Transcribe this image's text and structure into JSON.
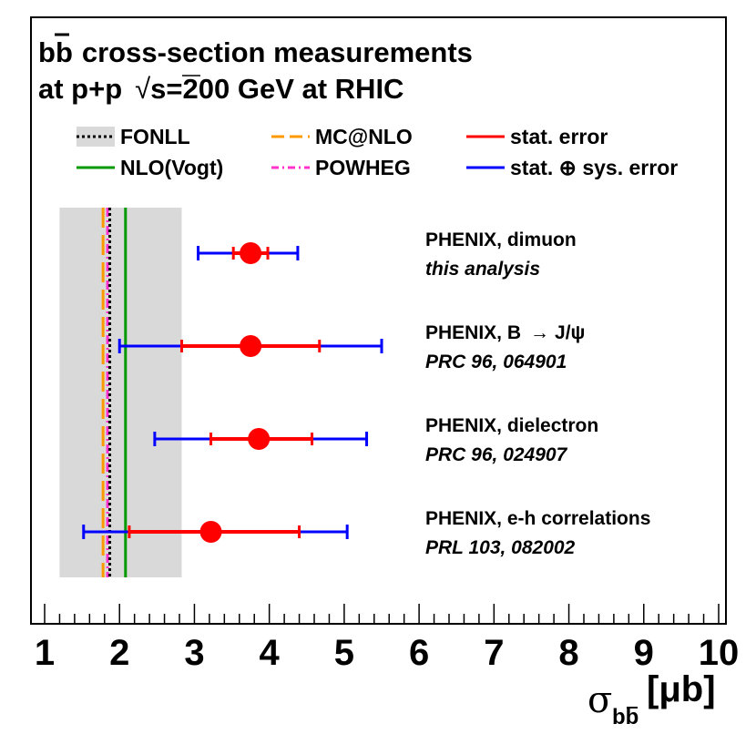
{
  "chart_data": {
    "type": "scatter",
    "title_line1": "cross-section measurements",
    "title_quark": "b",
    "title_antiquark": "b",
    "title_line2_pre": "at p+p",
    "title_sqrt": "√",
    "title_line2_post": "s=200 GeV at RHIC",
    "xlabel_symbol": "σ",
    "xlabel_sub": "bb",
    "xlabel_unit": "[μb]",
    "xlim": [
      1,
      10
    ],
    "xticks": [
      "1",
      "2",
      "3",
      "4",
      "5",
      "6",
      "7",
      "8",
      "9",
      "10"
    ],
    "legend": [
      {
        "label": "FONLL",
        "style": "dotted-band",
        "color": "#000000"
      },
      {
        "label": "MC@NLO",
        "style": "dashed",
        "color": "#ff9900"
      },
      {
        "label": "stat. error",
        "style": "solid",
        "color": "#ff0000"
      },
      {
        "label": "NLO(Vogt)",
        "style": "solid",
        "color": "#009900"
      },
      {
        "label": "POWHEG",
        "style": "dashdot",
        "color": "#ff33cc"
      },
      {
        "label": "stat. ⊕ sys. error",
        "style": "solid",
        "color": "#0000ff"
      }
    ],
    "theory": {
      "fonll_central": 1.87,
      "fonll_band": [
        1.2,
        2.83
      ],
      "nlo_vogt": 2.08,
      "mcnlo": 1.78,
      "powheg": 1.84
    },
    "measurements": [
      {
        "label": "PHENIX, dimuon",
        "ref": "this analysis",
        "value": 3.75,
        "stat": [
          3.52,
          3.98
        ],
        "total": [
          3.05,
          4.38
        ]
      },
      {
        "label": "PHENIX, B",
        "label_arrow": "→",
        "label_tail": "J/ψ",
        "ref": "PRC 96, 064901",
        "value": 3.75,
        "stat": [
          2.83,
          4.67
        ],
        "total": [
          2.0,
          5.5
        ]
      },
      {
        "label": "PHENIX, dielectron",
        "ref": "PRC 96, 024907",
        "value": 3.86,
        "stat": [
          3.22,
          4.57
        ],
        "total": [
          2.47,
          5.3
        ]
      },
      {
        "label": "PHENIX, e-h correlations",
        "ref": "PRL 103, 082002",
        "value": 3.22,
        "stat": [
          2.13,
          4.4
        ],
        "total": [
          1.52,
          5.04
        ]
      }
    ],
    "colors": {
      "marker": "#ff0000",
      "stat": "#ff0000",
      "total": "#0000ff",
      "band": "#d9d9d9",
      "fonll": "#000000",
      "nlo": "#009900",
      "mcnlo": "#ff9900",
      "powheg": "#ff33cc"
    },
    "grid": false
  }
}
